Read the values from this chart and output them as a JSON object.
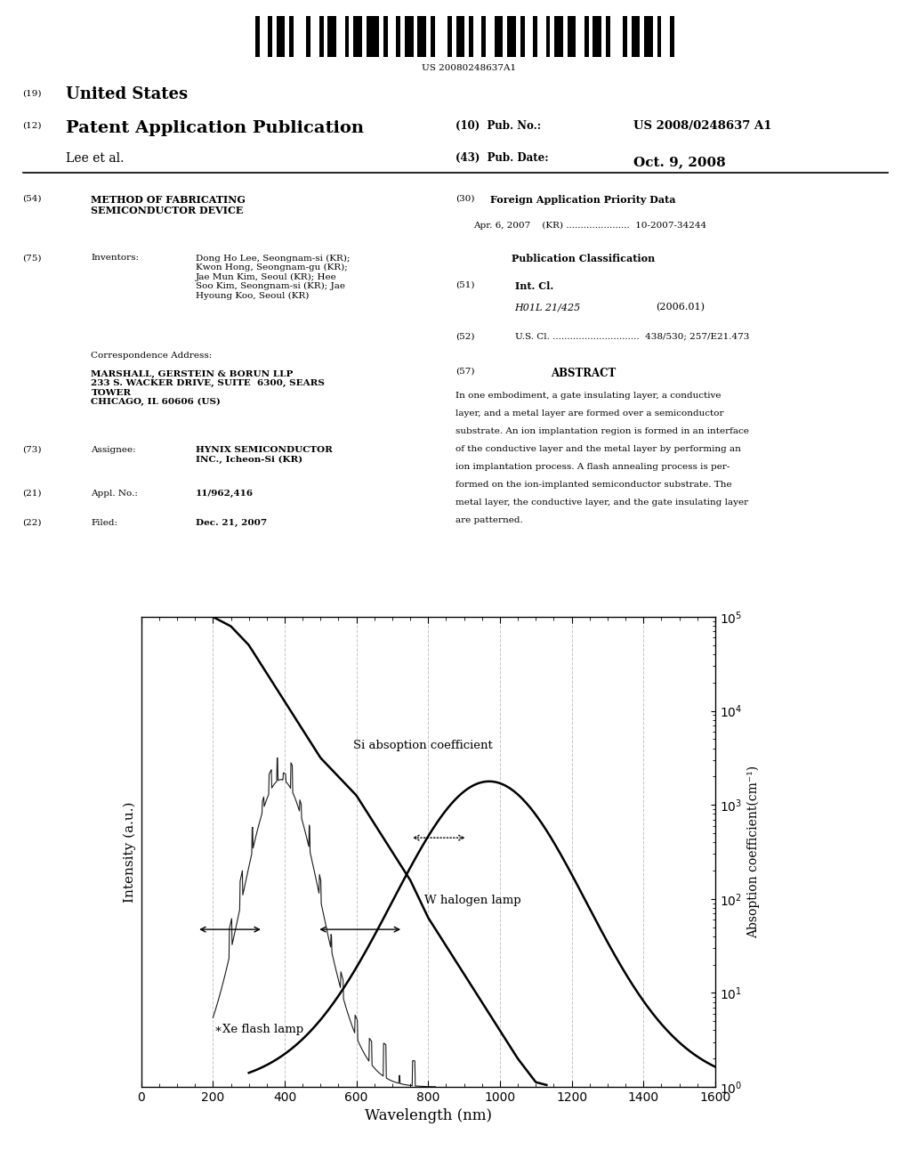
{
  "fig_xlabel": "Wavelength (nm)",
  "fig_ylabel_left": "Intensity (a.u.)",
  "fig_ylabel_right": "Absoption coefficient(cm⁻¹)",
  "x_range": [
    0,
    1600
  ],
  "annotations": {
    "si_label": "Si absoption coefficient",
    "xe_label": "∗Xe flash lamp",
    "w_label": "W halogen lamp"
  },
  "background_color": "#ffffff",
  "line_color": "#000000",
  "grid_color": "#aaaaaa",
  "header": {
    "barcode_text": "US 20080248637A1",
    "us19": "(19)",
    "united_states": "United States",
    "pat12": "(12)",
    "pat_pub": "Patent Application Publication",
    "pub_no_label": "(10)  Pub. No.:",
    "pub_no_val": "US 2008/0248637 A1",
    "author": "Lee et al.",
    "pub_date_label": "(43)  Pub. Date:",
    "pub_date_val": "Oct. 9, 2008",
    "title_label": "(54)",
    "title_val": "METHOD OF FABRICATING\nSEMICONDUCTOR DEVICE",
    "inv_label": "(75)",
    "inv_colon": "Inventors:",
    "inv_val": "Dong Ho Lee, Seongnam-si (KR);\nKwon Hong, Seongnam-gu (KR);\nJae Mun Kim, Seoul (KR); Hee\nSoo Kim, Seongnam-si (KR); Jae\nHyoung Koo, Seoul (KR)",
    "corr_addr": "Correspondence Address:",
    "corr_val": "MARSHALL, GERSTEIN & BORUN LLP\n233 S. WACKER DRIVE, SUITE  6300, SEARS\nTOWER\nCHICAGO, IL 60606 (US)",
    "asgn_label": "(73)",
    "asgn_colon": "Assignee:",
    "asgn_val": "HYNIX SEMICONDUCTOR\nINC., Icheon-Si (KR)",
    "appl_label": "(21)",
    "appl_colon": "Appl. No.:",
    "appl_val": "11/962,416",
    "filed_label": "(22)",
    "filed_colon": "Filed:",
    "filed_val": "Dec. 21, 2007",
    "fapd_label": "(30)",
    "fapd_title": "Foreign Application Priority Data",
    "fapd_entry": "Apr. 6, 2007    (KR) ......................  10-2007-34244",
    "pubclass_title": "Publication Classification",
    "int_cl_label": "(51)",
    "int_cl_bold": "Int. Cl.",
    "int_cl_val": "H01L 21/425",
    "int_cl_year": "(2006.01)",
    "us_cl_label": "(52)",
    "us_cl_val": "U.S. Cl. ..............................  438/530; 257/E21.473",
    "abstract_label": "(57)",
    "abstract_title": "ABSTRACT",
    "abstract_text": "In one embodiment, a gate insulating layer, a conductive layer, and a metal layer are formed over a semiconductor substrate. An ion implantation region is formed in an interface of the conductive layer and the metal layer by performing an ion implantation process. A flash annealing process is per-formed on the ion-implanted semiconductor substrate. The metal layer, the conductive layer, and the gate insulating layer are patterned."
  }
}
